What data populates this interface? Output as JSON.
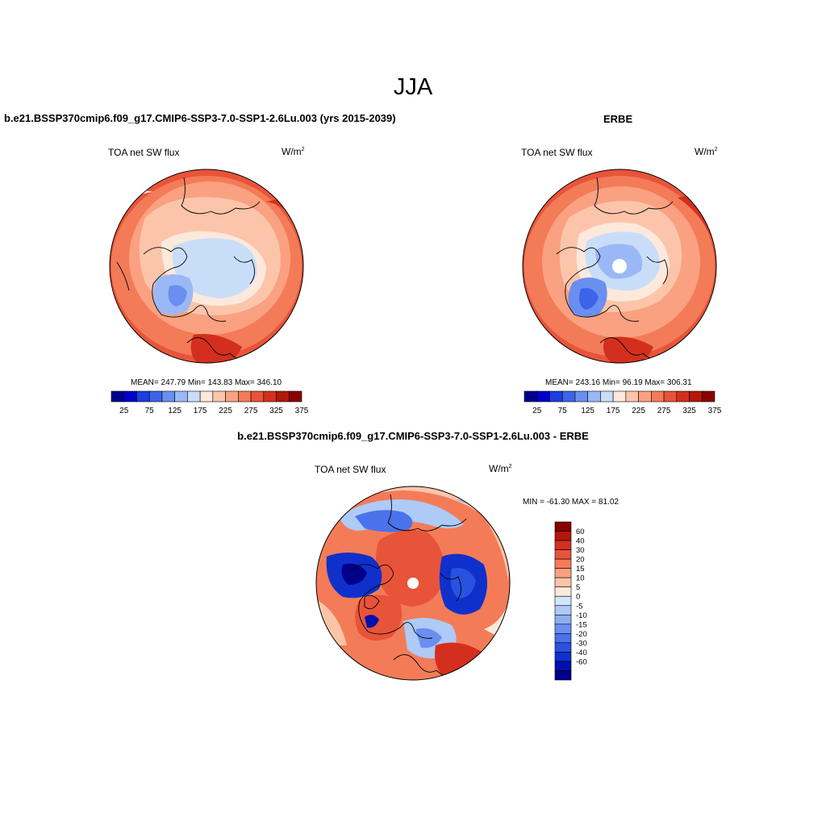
{
  "season": "JJA",
  "panels": [
    {
      "id": "model",
      "title": "b.e21.BSSP370cmip6.f09_g17.CMIP6-SSP3-7.0-SSP1-2.6Lu.003 (yrs 2015-2039)",
      "variable": "TOA net SW flux",
      "units_base": "W/m",
      "units_exp": "2",
      "stats": "MEAN= 247.79  Min= 143.83  Max= 346.10"
    },
    {
      "id": "obs",
      "title": "ERBE",
      "variable": "TOA net SW flux",
      "units_base": "W/m",
      "units_exp": "2",
      "stats": "MEAN= 243.16  Min=  96.19  Max= 306.31"
    },
    {
      "id": "diff",
      "title": "b.e21.BSSP370cmip6.f09_g17.CMIP6-SSP3-7.0-SSP1-2.6Lu.003 - ERBE",
      "variable": "TOA net SW flux",
      "units_base": "W/m",
      "units_exp": "2",
      "stats": "MIN = -61.30 MAX =  81.02"
    }
  ],
  "abs_colorbar": {
    "colors": [
      "#00008b",
      "#0000cd",
      "#1c3ee0",
      "#3c64e8",
      "#6a8ff0",
      "#9ab8f5",
      "#c8def8",
      "#fde8dc",
      "#fcc5aa",
      "#f9a180",
      "#f47b58",
      "#e8543a",
      "#d42f1e",
      "#b21808",
      "#8b0000"
    ],
    "tick_labels": [
      "25",
      "75",
      "125",
      "175",
      "225",
      "275",
      "325",
      "375"
    ]
  },
  "diff_colorbar": {
    "colors_top_to_bottom": [
      "#8b0000",
      "#b21808",
      "#d42f1e",
      "#e8543a",
      "#f47b58",
      "#f9a180",
      "#fcc5aa",
      "#fde8dc",
      "#d2e6fa",
      "#aecaf6",
      "#8aaef2",
      "#6a8ff0",
      "#4a72ea",
      "#2a52e0",
      "#1030cc",
      "#0010b0",
      "#00008b"
    ],
    "tick_labels": [
      "60",
      "40",
      "30",
      "20",
      "15",
      "10",
      "5",
      "0",
      "-5",
      "-10",
      "-15",
      "-20",
      "-30",
      "-40",
      "-60"
    ]
  }
}
